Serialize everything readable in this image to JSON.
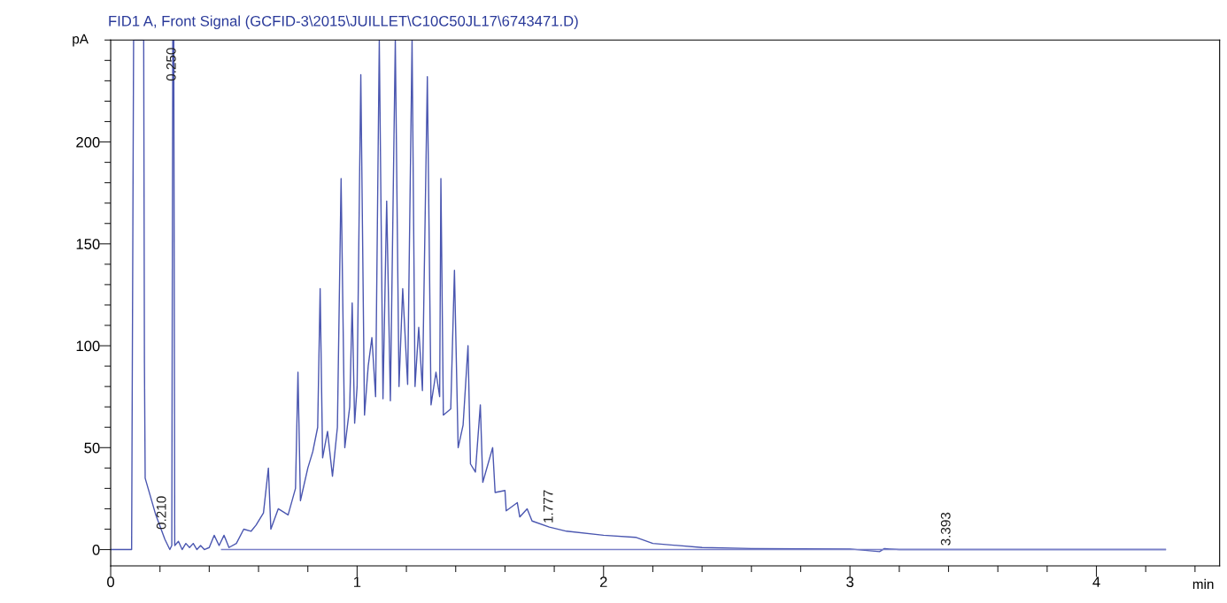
{
  "chart_data": {
    "type": "line",
    "title": "FID1 A, Front Signal (GCFID-3\\2015\\JUILLET\\C10C50JL17\\6743471.D)",
    "xlabel": "min",
    "ylabel": "pA",
    "series": [
      {
        "color": "#4a56b0",
        "x": [
          0,
          0.085,
          0.093,
          0.134,
          0.137,
          0.14,
          0.183,
          0.22,
          0.24,
          0.248,
          0.252,
          0.256,
          0.26,
          0.275,
          0.29,
          0.305,
          0.32,
          0.335,
          0.35,
          0.365,
          0.38,
          0.4,
          0.42,
          0.44,
          0.46,
          0.48,
          0.51,
          0.54,
          0.57,
          0.59,
          0.62,
          0.64,
          0.65,
          0.68,
          0.72,
          0.75,
          0.76,
          0.77,
          0.8,
          0.82,
          0.84,
          0.85,
          0.86,
          0.88,
          0.9,
          0.92,
          0.935,
          0.95,
          0.97,
          0.98,
          0.99,
          1.0,
          1.015,
          1.03,
          1.045,
          1.06,
          1.075,
          1.09,
          1.105,
          1.12,
          1.135,
          1.155,
          1.17,
          1.185,
          1.205,
          1.223,
          1.235,
          1.25,
          1.265,
          1.285,
          1.3,
          1.32,
          1.335,
          1.34,
          1.35,
          1.38,
          1.395,
          1.41,
          1.43,
          1.45,
          1.46,
          1.48,
          1.5,
          1.51,
          1.55,
          1.56,
          1.6,
          1.605,
          1.65,
          1.66,
          1.69,
          1.71,
          1.78,
          1.85,
          2.0,
          2.13,
          2.2,
          2.4,
          2.6,
          3.0,
          3.12,
          3.14,
          3.16,
          3.2,
          4.28
        ],
        "values": [
          0,
          0,
          250,
          250,
          92,
          35,
          17,
          5,
          0,
          2,
          250,
          250,
          2,
          4,
          0,
          3,
          1,
          3,
          0,
          2,
          0,
          1,
          7,
          2,
          7,
          1,
          3,
          10,
          9,
          12,
          18,
          40,
          10,
          20,
          17,
          30,
          87,
          24,
          40,
          48,
          60,
          128,
          45,
          58,
          36,
          60,
          182,
          50,
          70,
          121,
          62,
          80,
          233,
          66,
          90,
          104,
          75,
          250,
          74,
          171,
          73,
          250,
          80,
          128,
          81,
          250,
          80,
          109,
          78,
          232,
          71,
          87,
          75,
          182,
          66,
          69,
          137,
          50,
          61,
          100,
          42,
          38,
          71,
          33,
          50,
          28,
          29,
          19,
          23,
          16,
          20,
          14,
          11,
          9,
          7,
          6,
          3,
          1,
          0.5,
          0.3,
          -1,
          0.5,
          0.3,
          0,
          0
        ]
      },
      {
        "color": "#7a80c8",
        "x": [
          0.45,
          4.28
        ],
        "values": [
          0,
          0
        ]
      }
    ],
    "xlim": [
      0,
      4.5
    ],
    "ylim": [
      -8,
      250
    ],
    "xticks": [
      0,
      {
        "value": 0.2,
        "label": null
      },
      {
        "value": 0.4,
        "label": null
      },
      {
        "value": 0.6,
        "label": null
      },
      {
        "value": 0.8,
        "label": null
      },
      1,
      {
        "value": 1.2,
        "label": null
      },
      {
        "value": 1.4,
        "label": null
      },
      {
        "value": 1.6,
        "label": null
      },
      {
        "value": 1.8,
        "label": null
      },
      2,
      {
        "value": 2.2,
        "label": null
      },
      {
        "value": 2.4,
        "label": null
      },
      {
        "value": 2.6,
        "label": null
      },
      {
        "value": 2.8,
        "label": null
      },
      3,
      {
        "value": 3.2,
        "label": null
      },
      {
        "value": 3.4,
        "label": null
      },
      {
        "value": 3.6,
        "label": null
      },
      {
        "value": 3.8,
        "label": null
      },
      4,
      {
        "value": 4.2,
        "label": null
      },
      {
        "value": 4.4,
        "label": null
      }
    ],
    "yticks": [
      0,
      {
        "value": 10,
        "label": null
      },
      {
        "value": 20,
        "label": null
      },
      {
        "value": 30,
        "label": null
      },
      {
        "value": 40,
        "label": null
      },
      50,
      {
        "value": 60,
        "label": null
      },
      {
        "value": 70,
        "label": null
      },
      {
        "value": 80,
        "label": null
      },
      {
        "value": 90,
        "label": null
      },
      100,
      {
        "value": 110,
        "label": null
      },
      {
        "value": 120,
        "label": null
      },
      {
        "value": 130,
        "label": null
      },
      {
        "value": 140,
        "label": null
      },
      150,
      {
        "value": 160,
        "label": null
      },
      {
        "value": 170,
        "label": null
      },
      {
        "value": 180,
        "label": null
      },
      {
        "value": 190,
        "label": null
      },
      200,
      {
        "value": 210,
        "label": null
      },
      {
        "value": 220,
        "label": null
      },
      {
        "value": 230,
        "label": null
      },
      {
        "value": 240,
        "label": null
      },
      {
        "value": 250,
        "label": null
      }
    ],
    "annotations": [
      {
        "text": "0.250",
        "x": 0.25,
        "y": 228
      },
      {
        "text": "1.777",
        "x": 1.78,
        "y": 11
      },
      {
        "text": "0.210",
        "x": 0.21,
        "y": 8
      },
      {
        "text": "3.393",
        "x": 3.393,
        "y": 0
      }
    ],
    "grid": false,
    "legend": false,
    "line_style": "solid",
    "marker": "none"
  }
}
